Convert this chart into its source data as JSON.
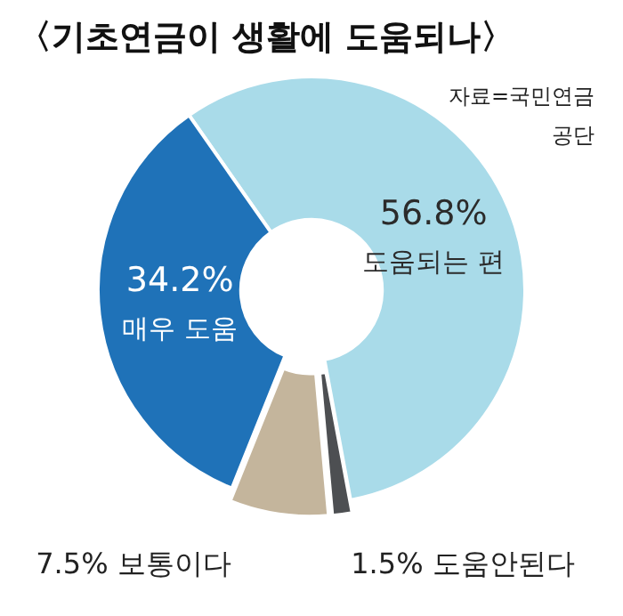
{
  "chart_data": {
    "type": "donut",
    "title": "〈기초연금이 생활에 도움되나〉",
    "categories": [
      "도움되는 편",
      "도움안된다",
      "보통이다",
      "매우 도움"
    ],
    "values": [
      56.8,
      1.5,
      7.5,
      34.2
    ],
    "value_labels": [
      "56.8%",
      "1.5%",
      "7.5%",
      "34.2%"
    ],
    "colors": [
      "#a9dbe9",
      "#4d4f52",
      "#c4b59c",
      "#1f72b8"
    ],
    "annotations": [
      "자료=국민연금공단"
    ]
  }
}
